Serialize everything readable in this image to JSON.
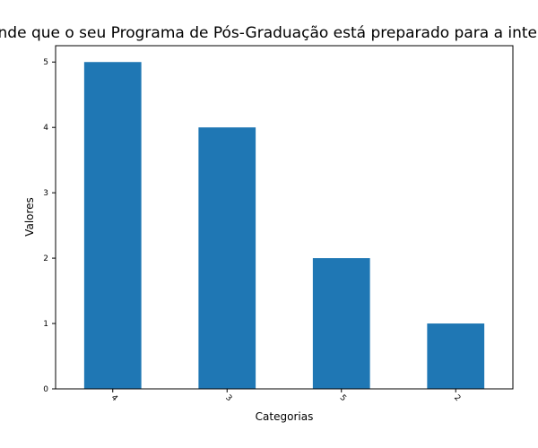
{
  "chart_data": {
    "type": "bar",
    "title": "…nde que o seu Programa de Pós-Graduação está preparado para a intern…",
    "xlabel": "Categorias",
    "ylabel": "Valores",
    "categories": [
      "4",
      "3",
      "5",
      "2"
    ],
    "values": [
      5,
      4,
      2,
      1
    ],
    "ylim": [
      0,
      5.25
    ],
    "yticks": [
      "0",
      "1",
      "2",
      "3",
      "4",
      "5"
    ],
    "grid": false,
    "colors": {
      "bar": "#1f77b4",
      "axis": "#000000",
      "background": "#ffffff"
    }
  }
}
